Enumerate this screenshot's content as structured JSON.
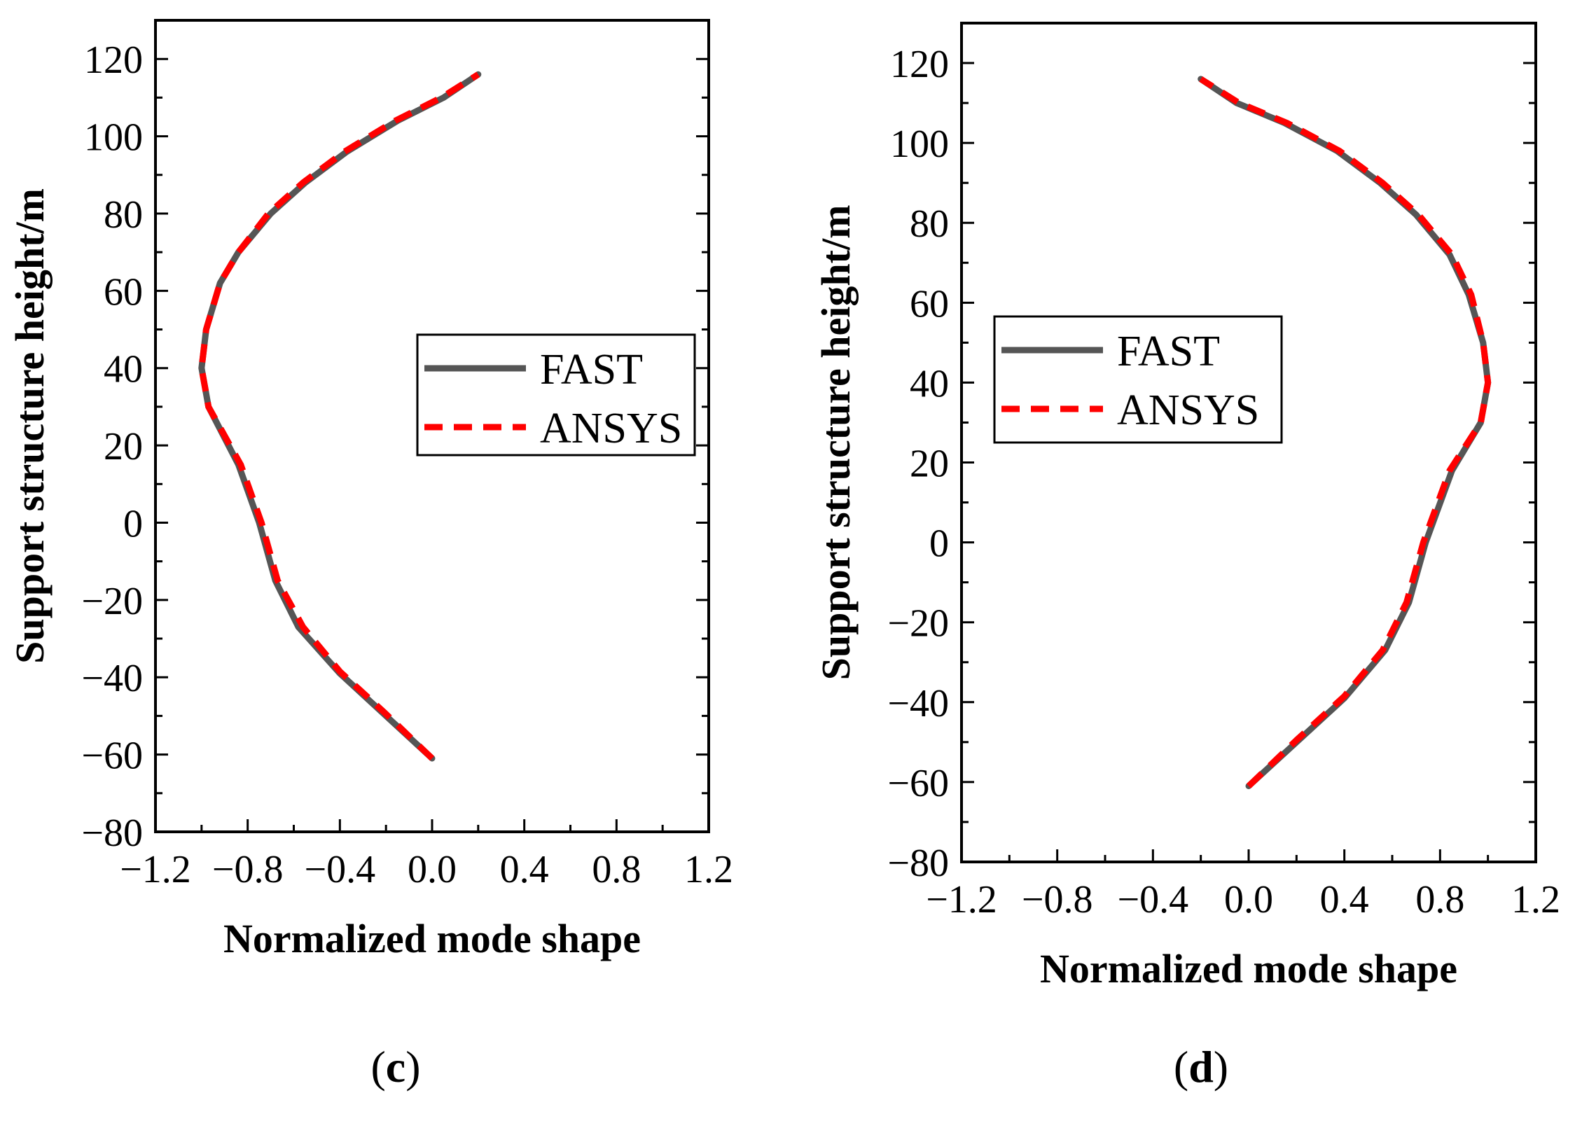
{
  "chart_data": [
    {
      "panel": "(c)",
      "panel_label": "c",
      "type": "line",
      "xlabel": "Normalized mode shape",
      "ylabel": "Support structure height/m",
      "xlim": [
        -1.2,
        1.2
      ],
      "ylim": [
        -80,
        130
      ],
      "xticks": [
        -1.2,
        -0.8,
        -0.4,
        0.0,
        0.4,
        0.8,
        1.2
      ],
      "xtick_labels": [
        "−1.2",
        "−0.8",
        "−0.4",
        "0.0",
        "0.4",
        "0.8",
        "1.2"
      ],
      "yticks": [
        -80,
        -60,
        -40,
        -20,
        0,
        20,
        40,
        60,
        80,
        100,
        120
      ],
      "ytick_labels": [
        "−80",
        "−60",
        "−40",
        "−20",
        "0",
        "20",
        "40",
        "60",
        "80",
        "100",
        "120"
      ],
      "legend_position": "middle-right",
      "series": [
        {
          "name": "FAST",
          "color": "#555555",
          "style": "solid",
          "points": [
            [
              0.0,
              -61
            ],
            [
              -0.2,
              -50
            ],
            [
              -0.4,
              -39
            ],
            [
              -0.58,
              -27
            ],
            [
              -0.68,
              -15
            ],
            [
              -0.75,
              0
            ],
            [
              -0.84,
              15
            ],
            [
              -0.97,
              30
            ],
            [
              -1.0,
              40
            ],
            [
              -0.98,
              50
            ],
            [
              -0.92,
              62
            ],
            [
              -0.84,
              70
            ],
            [
              -0.7,
              80
            ],
            [
              -0.55,
              88
            ],
            [
              -0.37,
              96
            ],
            [
              -0.15,
              104
            ],
            [
              0.05,
              110
            ],
            [
              0.2,
              116
            ]
          ]
        },
        {
          "name": "ANSYS",
          "color": "#ff0000",
          "style": "dashed",
          "points": [
            [
              0.0,
              -61
            ],
            [
              -0.2,
              -49.5
            ],
            [
              -0.4,
              -38.5
            ],
            [
              -0.56,
              -27
            ],
            [
              -0.67,
              -15
            ],
            [
              -0.74,
              0
            ],
            [
              -0.83,
              15
            ],
            [
              -0.97,
              30
            ],
            [
              -1.0,
              40
            ],
            [
              -0.98,
              50
            ],
            [
              -0.92,
              62
            ],
            [
              -0.84,
              70
            ],
            [
              -0.71,
              80
            ],
            [
              -0.56,
              88
            ],
            [
              -0.38,
              96
            ],
            [
              -0.16,
              104
            ],
            [
              0.04,
              110
            ],
            [
              0.2,
              116
            ]
          ]
        }
      ]
    },
    {
      "panel": "(d)",
      "panel_label": "d",
      "type": "line",
      "xlabel": "Normalized mode shape",
      "ylabel": "Support structure height/m",
      "xlim": [
        -1.2,
        1.2
      ],
      "ylim": [
        -80,
        130
      ],
      "xticks": [
        -1.2,
        -0.8,
        -0.4,
        0.0,
        0.4,
        0.8,
        1.2
      ],
      "xtick_labels": [
        "−1.2",
        "−0.8",
        "−0.4",
        "0.0",
        "0.4",
        "0.8",
        "1.2"
      ],
      "yticks": [
        -80,
        -60,
        -40,
        -20,
        0,
        20,
        40,
        60,
        80,
        100,
        120
      ],
      "ytick_labels": [
        "−80",
        "−60",
        "−40",
        "−20",
        "0",
        "20",
        "40",
        "60",
        "80",
        "100",
        "120"
      ],
      "legend_position": "middle-left",
      "series": [
        {
          "name": "FAST",
          "color": "#555555",
          "style": "solid",
          "points": [
            [
              0.0,
              -61
            ],
            [
              0.2,
              -50
            ],
            [
              0.4,
              -39
            ],
            [
              0.57,
              -27
            ],
            [
              0.67,
              -15
            ],
            [
              0.74,
              0
            ],
            [
              0.85,
              18
            ],
            [
              0.97,
              30
            ],
            [
              1.0,
              40
            ],
            [
              0.98,
              50
            ],
            [
              0.92,
              62
            ],
            [
              0.84,
              72
            ],
            [
              0.7,
              82
            ],
            [
              0.55,
              90
            ],
            [
              0.37,
              98
            ],
            [
              0.15,
              105
            ],
            [
              -0.05,
              110
            ],
            [
              -0.2,
              116
            ]
          ]
        },
        {
          "name": "ANSYS",
          "color": "#ff0000",
          "style": "dashed",
          "points": [
            [
              0.0,
              -61
            ],
            [
              0.2,
              -49.5
            ],
            [
              0.4,
              -38.5
            ],
            [
              0.56,
              -27
            ],
            [
              0.66,
              -15
            ],
            [
              0.73,
              0
            ],
            [
              0.84,
              18
            ],
            [
              0.97,
              30
            ],
            [
              1.0,
              40
            ],
            [
              0.98,
              50
            ],
            [
              0.93,
              62
            ],
            [
              0.85,
              72
            ],
            [
              0.71,
              82
            ],
            [
              0.56,
              90
            ],
            [
              0.38,
              98
            ],
            [
              0.16,
              105
            ],
            [
              -0.04,
              110
            ],
            [
              -0.2,
              116
            ]
          ]
        }
      ]
    }
  ]
}
